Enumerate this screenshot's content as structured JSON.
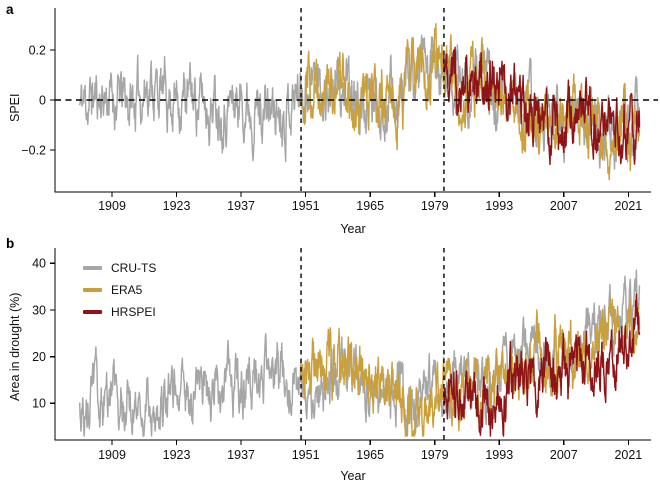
{
  "chart_data": [
    {
      "type": "line",
      "panel_label": "a",
      "ylabel": "SPEI",
      "xlabel": "Year",
      "ylim": [
        -0.37,
        0.37
      ],
      "yticks": [
        0.2,
        0,
        -0.2
      ],
      "ytick_labels": [
        "0.2",
        "0",
        "−0.2"
      ],
      "xticks": [
        1909,
        1923,
        1937,
        1951,
        1965,
        1979,
        1993,
        2007,
        2021
      ],
      "xlim": [
        1897,
        2025
      ],
      "grid": false,
      "zero_line": 0,
      "vlines": [
        1950,
        1981
      ],
      "legend_position": "none",
      "series": [
        {
          "name": "CRU-TS",
          "color": "#A6A6A6",
          "noise_sd": 0.075,
          "seed": 11,
          "trend": [
            [
              1902,
              -0.02
            ],
            [
              1905,
              0.01
            ],
            [
              1908,
              0.02
            ],
            [
              1911,
              0.0
            ],
            [
              1914,
              -0.01
            ],
            [
              1917,
              0.08
            ],
            [
              1920,
              0.02
            ],
            [
              1923,
              0.02
            ],
            [
              1926,
              0.01
            ],
            [
              1929,
              -0.01
            ],
            [
              1932,
              0.0
            ],
            [
              1935,
              -0.01
            ],
            [
              1938,
              0.01
            ],
            [
              1941,
              -0.03
            ],
            [
              1944,
              -0.05
            ],
            [
              1947,
              -0.01
            ],
            [
              1950,
              0.06
            ],
            [
              1953,
              0.07
            ],
            [
              1956,
              0.05
            ],
            [
              1959,
              0.04
            ],
            [
              1962,
              -0.03
            ],
            [
              1965,
              -0.02
            ],
            [
              1968,
              0.01
            ],
            [
              1971,
              0.02
            ],
            [
              1974,
              0.08
            ],
            [
              1977,
              0.1
            ],
            [
              1980,
              0.09
            ],
            [
              1983,
              0.08
            ],
            [
              1986,
              0.07
            ],
            [
              1989,
              0.1
            ],
            [
              1992,
              0.04
            ],
            [
              1995,
              0.03
            ],
            [
              1998,
              -0.02
            ],
            [
              2001,
              -0.08
            ],
            [
              2004,
              -0.09
            ],
            [
              2007,
              -0.07
            ],
            [
              2010,
              -0.03
            ],
            [
              2013,
              -0.08
            ],
            [
              2016,
              -0.16
            ],
            [
              2019,
              -0.12
            ],
            [
              2021,
              -0.15
            ],
            [
              2023,
              -0.08
            ]
          ]
        },
        {
          "name": "ERA5",
          "color": "#C9A03C",
          "noise_sd": 0.08,
          "seed": 29,
          "trend": [
            [
              1950,
              0.09
            ],
            [
              1953,
              0.08
            ],
            [
              1956,
              0.04
            ],
            [
              1959,
              0.05
            ],
            [
              1962,
              -0.04
            ],
            [
              1965,
              -0.05
            ],
            [
              1968,
              -0.01
            ],
            [
              1971,
              0.03
            ],
            [
              1974,
              0.12
            ],
            [
              1977,
              0.17
            ],
            [
              1980,
              0.12
            ],
            [
              1983,
              0.05
            ],
            [
              1986,
              0.06
            ],
            [
              1989,
              0.09
            ],
            [
              1992,
              0.03
            ],
            [
              1995,
              0.02
            ],
            [
              1998,
              -0.03
            ],
            [
              2001,
              -0.1
            ],
            [
              2004,
              -0.11
            ],
            [
              2007,
              -0.08
            ],
            [
              2010,
              -0.05
            ],
            [
              2013,
              -0.1
            ],
            [
              2016,
              -0.19
            ],
            [
              2019,
              -0.14
            ],
            [
              2021,
              -0.18
            ],
            [
              2023,
              -0.12
            ]
          ]
        },
        {
          "name": "HRSPEI",
          "color": "#8E1418",
          "noise_sd": 0.075,
          "seed": 47,
          "trend": [
            [
              1981,
              0.16
            ],
            [
              1984,
              0.08
            ],
            [
              1987,
              0.09
            ],
            [
              1990,
              0.11
            ],
            [
              1993,
              0.05
            ],
            [
              1996,
              0.02
            ],
            [
              1999,
              -0.03
            ],
            [
              2002,
              -0.09
            ],
            [
              2005,
              -0.09
            ],
            [
              2008,
              -0.04
            ],
            [
              2011,
              0.0
            ],
            [
              2014,
              -0.06
            ],
            [
              2016,
              -0.13
            ],
            [
              2018,
              -0.07
            ],
            [
              2020,
              -0.11
            ],
            [
              2022,
              -0.1
            ],
            [
              2023,
              -0.05
            ]
          ]
        }
      ]
    },
    {
      "type": "line",
      "panel_label": "b",
      "ylabel": "Area in drought (%)",
      "xlabel": "Year",
      "ylim": [
        2,
        43
      ],
      "yticks": [
        10,
        20,
        30,
        40
      ],
      "ytick_labels": [
        "10",
        "20",
        "30",
        "40"
      ],
      "xticks": [
        1909,
        1923,
        1937,
        1951,
        1965,
        1979,
        1993,
        2007,
        2021
      ],
      "xlim": [
        1897,
        2025
      ],
      "grid": false,
      "vlines": [
        1950,
        1981
      ],
      "legend_position": "top-left-inside",
      "legend": [
        "CRU-TS",
        "ERA5",
        "HRSPEI"
      ],
      "series": [
        {
          "name": "CRU-TS",
          "color": "#A6A6A6",
          "noise_sd": 3.8,
          "seed": 63,
          "trend": [
            [
              1902,
              12
            ],
            [
              1905,
              10
            ],
            [
              1908,
              11
            ],
            [
              1911,
              12
            ],
            [
              1914,
              11
            ],
            [
              1917,
              11
            ],
            [
              1920,
              12
            ],
            [
              1923,
              13
            ],
            [
              1926,
              12
            ],
            [
              1929,
              13
            ],
            [
              1932,
              13
            ],
            [
              1935,
              14
            ],
            [
              1938,
              13
            ],
            [
              1941,
              15
            ],
            [
              1944,
              16
            ],
            [
              1947,
              14
            ],
            [
              1950,
              13
            ],
            [
              1953,
              14
            ],
            [
              1956,
              15
            ],
            [
              1959,
              16
            ],
            [
              1962,
              16
            ],
            [
              1965,
              15
            ],
            [
              1968,
              14
            ],
            [
              1971,
              13
            ],
            [
              1974,
              12
            ],
            [
              1977,
              13
            ],
            [
              1980,
              13
            ],
            [
              1983,
              15
            ],
            [
              1986,
              13
            ],
            [
              1989,
              13
            ],
            [
              1992,
              16
            ],
            [
              1995,
              19
            ],
            [
              1998,
              21
            ],
            [
              2001,
              20
            ],
            [
              2004,
              22
            ],
            [
              2007,
              22
            ],
            [
              2010,
              25
            ],
            [
              2013,
              26
            ],
            [
              2016,
              28
            ],
            [
              2019,
              30
            ],
            [
              2021,
              32
            ],
            [
              2023,
              30
            ]
          ]
        },
        {
          "name": "ERA5",
          "color": "#C9A03C",
          "noise_sd": 4.3,
          "seed": 83,
          "trend": [
            [
              1950,
              16
            ],
            [
              1953,
              18
            ],
            [
              1956,
              17
            ],
            [
              1959,
              18
            ],
            [
              1962,
              16
            ],
            [
              1965,
              16
            ],
            [
              1968,
              14
            ],
            [
              1971,
              11
            ],
            [
              1974,
              9
            ],
            [
              1977,
              8
            ],
            [
              1980,
              10
            ],
            [
              1983,
              12
            ],
            [
              1986,
              11
            ],
            [
              1989,
              10
            ],
            [
              1992,
              13
            ],
            [
              1995,
              15
            ],
            [
              1998,
              17
            ],
            [
              2001,
              18
            ],
            [
              2004,
              20
            ],
            [
              2007,
              19
            ],
            [
              2010,
              21
            ],
            [
              2013,
              22
            ],
            [
              2016,
              26
            ],
            [
              2019,
              31
            ],
            [
              2021,
              34
            ],
            [
              2023,
              30
            ]
          ]
        },
        {
          "name": "HRSPEI",
          "color": "#8E1418",
          "noise_sd": 4.0,
          "seed": 97,
          "trend": [
            [
              1981,
              12
            ],
            [
              1984,
              11
            ],
            [
              1987,
              10
            ],
            [
              1990,
              9
            ],
            [
              1993,
              12
            ],
            [
              1996,
              13
            ],
            [
              1999,
              15
            ],
            [
              2002,
              16
            ],
            [
              2005,
              16
            ],
            [
              2008,
              16
            ],
            [
              2011,
              18
            ],
            [
              2014,
              20
            ],
            [
              2017,
              22
            ],
            [
              2020,
              25
            ],
            [
              2022,
              28
            ],
            [
              2023,
              26
            ]
          ]
        }
      ]
    }
  ]
}
